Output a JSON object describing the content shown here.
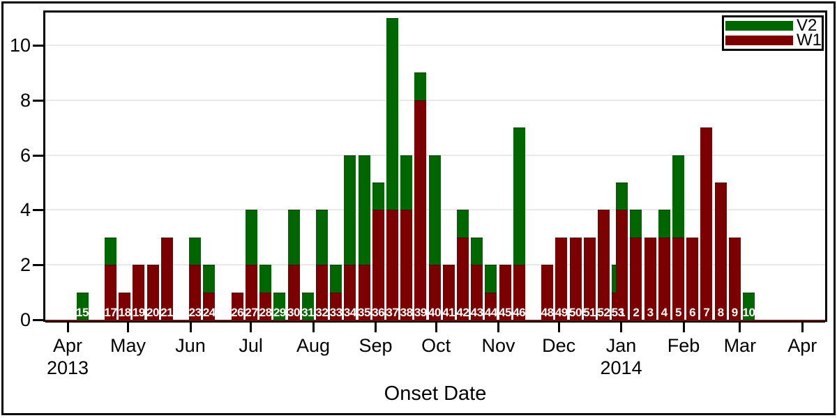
{
  "chart_data": {
    "type": "bar",
    "stacked": true,
    "xlabel": "Onset Date",
    "ylabel": "",
    "ylim": [
      0,
      11.3
    ],
    "y_ticks": [
      0,
      2,
      4,
      6,
      8,
      10
    ],
    "grid_values": [
      2,
      4,
      6,
      8,
      10
    ],
    "grid": "horizontal-light-gray",
    "legend": {
      "position": "top-right",
      "entries": [
        {
          "label": "V2",
          "color": "#006600"
        },
        {
          "label": "W1",
          "color": "#7D0000"
        }
      ]
    },
    "x_axis_months": [
      {
        "label": "Apr",
        "year": "2013",
        "day_offset": 0
      },
      {
        "label": "May",
        "day_offset": 30
      },
      {
        "label": "Jun",
        "day_offset": 61
      },
      {
        "label": "Jul",
        "day_offset": 91
      },
      {
        "label": "Aug",
        "day_offset": 122
      },
      {
        "label": "Sep",
        "day_offset": 153
      },
      {
        "label": "Oct",
        "day_offset": 183
      },
      {
        "label": "Nov",
        "day_offset": 214
      },
      {
        "label": "Dec",
        "day_offset": 244
      },
      {
        "label": "Jan",
        "year": "2014",
        "day_offset": 275
      },
      {
        "label": "Feb",
        "day_offset": 306
      },
      {
        "label": "Mar",
        "day_offset": 334
      },
      {
        "label": "Apr",
        "day_offset": 365
      }
    ],
    "note": "Weekly stacked bars labeled with epi week number; W1 (maroon) stacked below V2 (green). Weeks 16, 22, 25 and 47 have no cases. The week 53 (2013) bar is mostly hidden behind the overlapping week 1 (2014) bar.",
    "bars": [
      {
        "week": "15",
        "w1": 0,
        "v2": 1
      },
      {
        "week": "17",
        "w1": 2,
        "v2": 1
      },
      {
        "week": "18",
        "w1": 1,
        "v2": 0
      },
      {
        "week": "19",
        "w1": 2,
        "v2": 0
      },
      {
        "week": "20",
        "w1": 2,
        "v2": 0
      },
      {
        "week": "21",
        "w1": 3,
        "v2": 0
      },
      {
        "week": "23",
        "w1": 2,
        "v2": 1
      },
      {
        "week": "24",
        "w1": 1,
        "v2": 1
      },
      {
        "week": "26",
        "w1": 1,
        "v2": 0
      },
      {
        "week": "27",
        "w1": 2,
        "v2": 2
      },
      {
        "week": "28",
        "w1": 1,
        "v2": 1
      },
      {
        "week": "29",
        "w1": 0,
        "v2": 1
      },
      {
        "week": "30",
        "w1": 2,
        "v2": 2
      },
      {
        "week": "31",
        "w1": 0,
        "v2": 1
      },
      {
        "week": "32",
        "w1": 2,
        "v2": 2
      },
      {
        "week": "33",
        "w1": 1,
        "v2": 1
      },
      {
        "week": "34",
        "w1": 2,
        "v2": 4
      },
      {
        "week": "35",
        "w1": 2,
        "v2": 4
      },
      {
        "week": "36",
        "w1": 4,
        "v2": 1
      },
      {
        "week": "37",
        "w1": 4,
        "v2": 7
      },
      {
        "week": "38",
        "w1": 4,
        "v2": 2
      },
      {
        "week": "39",
        "w1": 8,
        "v2": 1
      },
      {
        "week": "40",
        "w1": 2,
        "v2": 4
      },
      {
        "week": "41",
        "w1": 2,
        "v2": 0
      },
      {
        "week": "42",
        "w1": 3,
        "v2": 1
      },
      {
        "week": "43",
        "w1": 2,
        "v2": 1
      },
      {
        "week": "44",
        "w1": 1,
        "v2": 1
      },
      {
        "week": "45",
        "w1": 2,
        "v2": 0
      },
      {
        "week": "46",
        "w1": 2,
        "v2": 5
      },
      {
        "week": "48",
        "w1": 2,
        "v2": 0
      },
      {
        "week": "49",
        "w1": 3,
        "v2": 0
      },
      {
        "week": "50",
        "w1": 3,
        "v2": 0
      },
      {
        "week": "51",
        "w1": 3,
        "v2": 0
      },
      {
        "week": "52",
        "w1": 4,
        "v2": 0
      },
      {
        "week": "53",
        "w1": 1,
        "v2": 1
      },
      {
        "week": "1",
        "w1": 4,
        "v2": 1
      },
      {
        "week": "2",
        "w1": 3,
        "v2": 1
      },
      {
        "week": "3",
        "w1": 3,
        "v2": 0
      },
      {
        "week": "4",
        "w1": 3,
        "v2": 1
      },
      {
        "week": "5",
        "w1": 3,
        "v2": 3
      },
      {
        "week": "6",
        "w1": 3,
        "v2": 0
      },
      {
        "week": "7",
        "w1": 7,
        "v2": 0
      },
      {
        "week": "8",
        "w1": 5,
        "v2": 0
      },
      {
        "week": "9",
        "w1": 3,
        "v2": 0
      },
      {
        "week": "10",
        "w1": 0,
        "v2": 1
      }
    ]
  },
  "colors": {
    "v2": "#006600",
    "w1": "#7D0000",
    "grid": "#E9E9E9",
    "baseline_accent": "#6E0E05",
    "bar_label_text": "#FFFFFF"
  }
}
